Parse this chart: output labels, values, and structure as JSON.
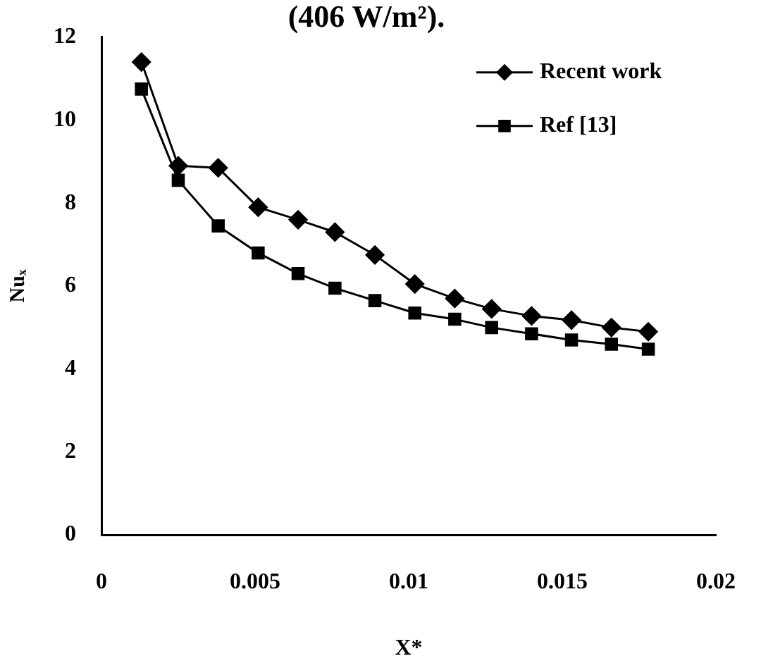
{
  "chart_data": {
    "type": "line",
    "title": "(406 W/m²).",
    "xlabel": "X*",
    "ylabel": "Nuₓ",
    "x": [
      0.0013,
      0.0025,
      0.0038,
      0.0051,
      0.0064,
      0.0076,
      0.0089,
      0.0102,
      0.0115,
      0.0127,
      0.014,
      0.0153,
      0.0166,
      0.0178
    ],
    "series": [
      {
        "name": "Recent work",
        "color": "#000000",
        "marker": "diamond",
        "values": [
          11.4,
          8.9,
          8.85,
          7.9,
          7.6,
          7.3,
          6.75,
          6.05,
          5.7,
          5.45,
          5.28,
          5.18,
          5.0,
          4.9
        ]
      },
      {
        "name": "Ref [13]",
        "color": "#000000",
        "marker": "square",
        "values": [
          10.75,
          8.55,
          7.45,
          6.8,
          6.3,
          5.95,
          5.65,
          5.35,
          5.2,
          5.0,
          4.85,
          4.7,
          4.6,
          4.48
        ]
      }
    ],
    "xlim": [
      0,
      0.02
    ],
    "xticks": [
      0,
      0.005,
      0.01,
      0.015,
      0.02
    ],
    "ylim": [
      0,
      12
    ],
    "yticks": [
      0,
      2,
      4,
      6,
      8,
      10,
      12
    ],
    "grid": false,
    "legend": "top right",
    "line_style": "solid"
  }
}
